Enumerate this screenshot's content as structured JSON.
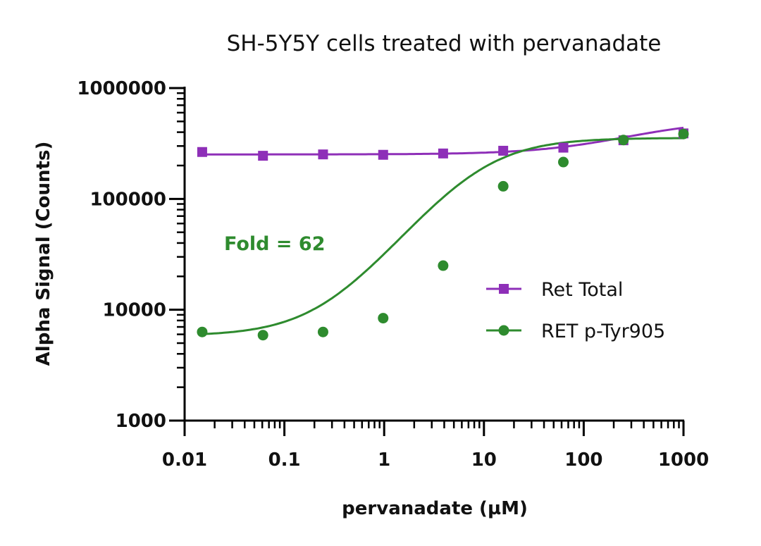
{
  "chart_data": {
    "type": "scatter",
    "title": "SH-5Y5Y cells treated with pervanadate",
    "xlabel": "pervanadate (µM)",
    "ylabel": "Alpha Signal (Counts)",
    "x_scale": "log",
    "y_scale": "log",
    "xlim": [
      0.01,
      1000
    ],
    "ylim": [
      1000,
      1000000
    ],
    "x_tick_labels": [
      "0.01",
      "0.1",
      "1",
      "10",
      "100",
      "1000"
    ],
    "y_tick_labels": [
      "1000",
      "10000",
      "100000",
      "1000000"
    ],
    "legend_position": "right",
    "annotation": {
      "text": "Fold = 62",
      "color": "#2e8b2e"
    },
    "series": [
      {
        "name": "Ret Total",
        "color": "#8e2fb8",
        "marker": "square",
        "x": [
          0.015,
          0.061,
          0.244,
          0.977,
          3.9,
          15.6,
          62.5,
          250,
          1000
        ],
        "y": [
          265000,
          245000,
          252000,
          250000,
          257000,
          272000,
          290000,
          338000,
          390000
        ]
      },
      {
        "name": "RET p-Tyr905",
        "color": "#2e8b2e",
        "marker": "circle",
        "x": [
          0.015,
          0.061,
          0.244,
          0.977,
          3.9,
          15.6,
          62.5,
          250,
          1000
        ],
        "y": [
          6300,
          5900,
          6300,
          8400,
          25000,
          130000,
          215000,
          340000,
          385000
        ]
      }
    ]
  }
}
